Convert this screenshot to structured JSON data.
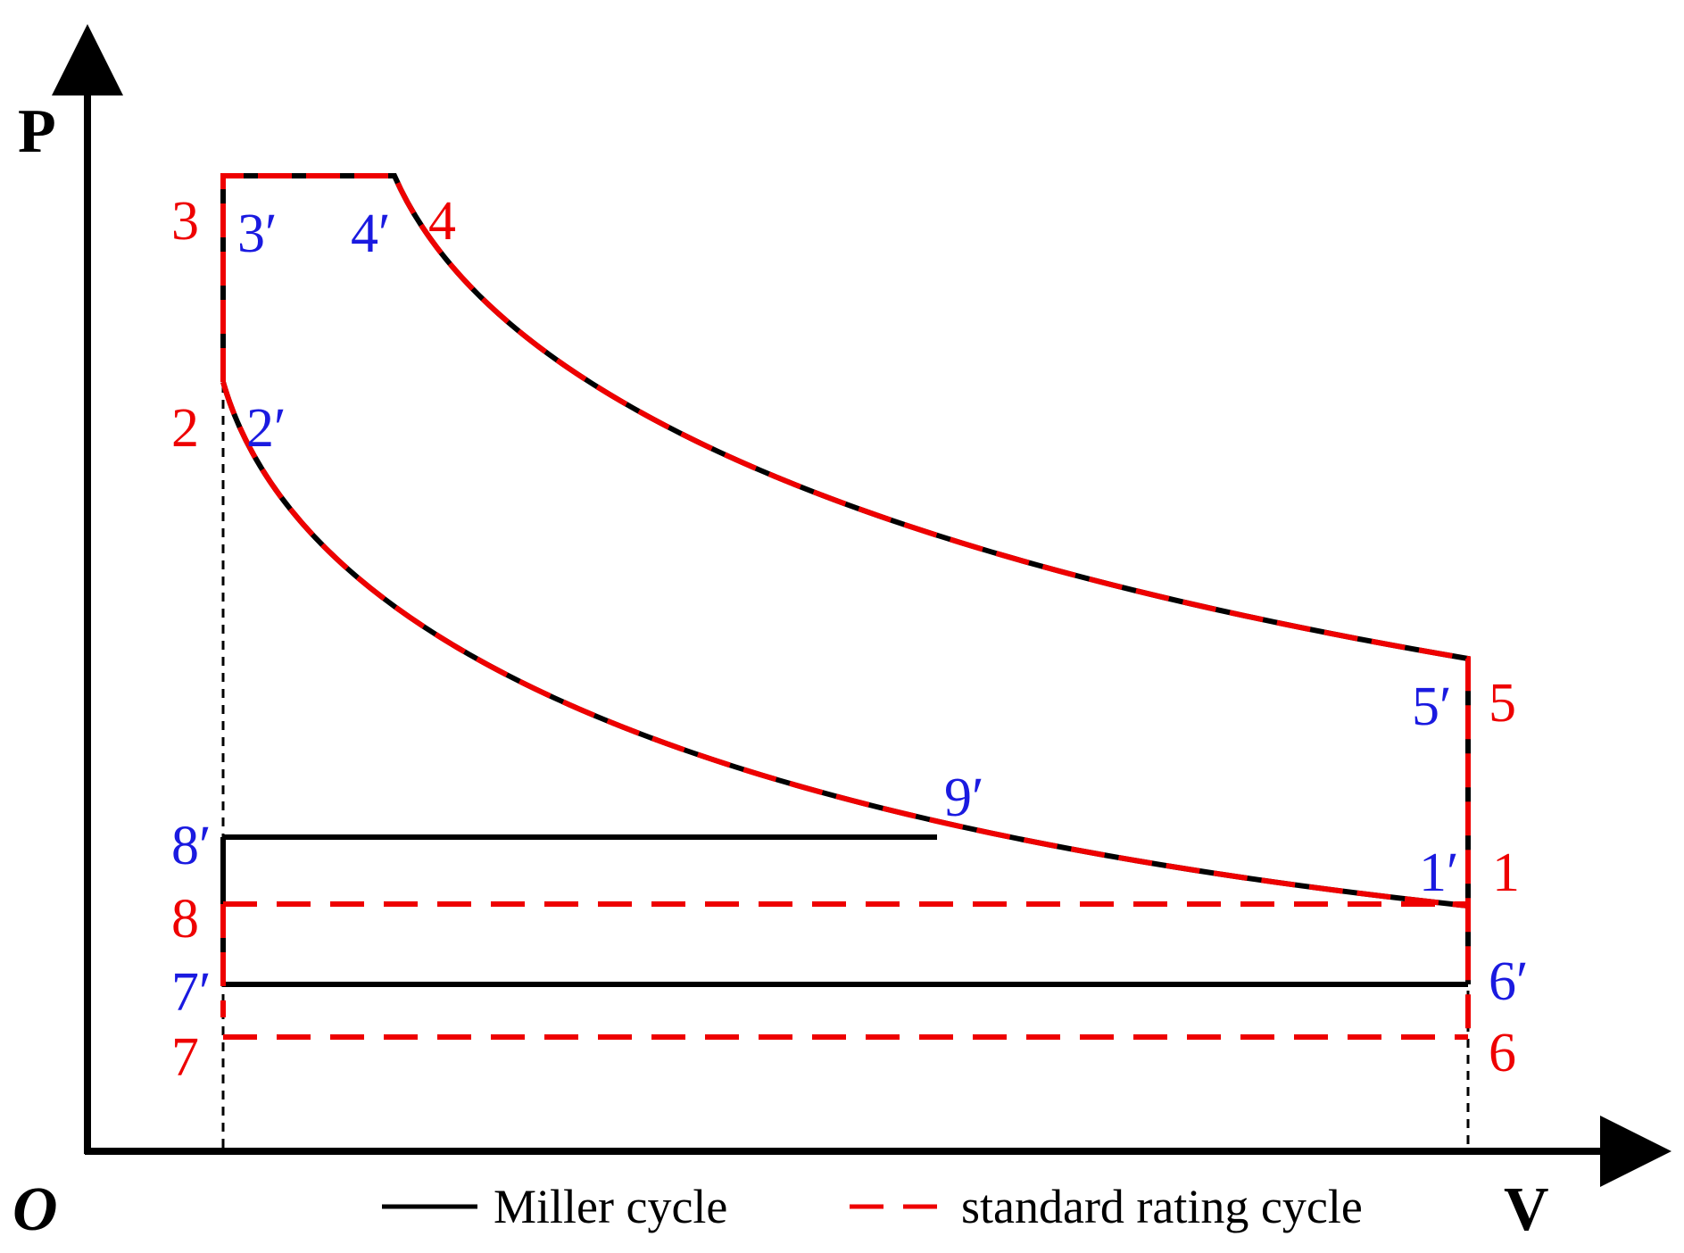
{
  "axes": {
    "y_label": "P",
    "x_label": "V",
    "origin_label": "O"
  },
  "legend": {
    "miller": "Miller cycle",
    "standard": "standard rating cycle"
  },
  "colors": {
    "miller": "#000000",
    "standard": "#ee0000",
    "prime_label": "#1a1ae0",
    "plain_label": "#ee0000",
    "axis": "#000000"
  },
  "labels": {
    "p1": "1",
    "p2": "2",
    "p3": "3",
    "p4": "4",
    "p5": "5",
    "p6": "6",
    "p7": "7",
    "p8": "8",
    "p1p": "1′",
    "p2p": "2′",
    "p3p": "3′",
    "p4p": "4′",
    "p5p": "5′",
    "p6p": "6′",
    "p7p": "7′",
    "p8p": "8′",
    "p9p": "9′"
  }
}
